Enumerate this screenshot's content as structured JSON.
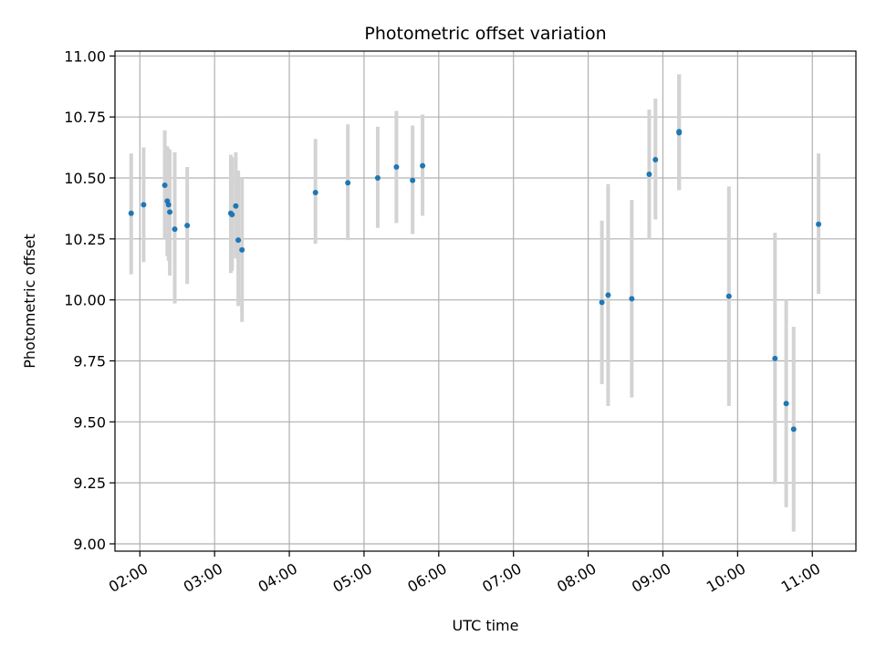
{
  "chart_data": {
    "type": "scatter",
    "title": "Photometric offset variation",
    "xlabel": "UTC time",
    "ylabel": "Photometric offset",
    "x_ticks": [
      "02:00",
      "03:00",
      "04:00",
      "05:00",
      "06:00",
      "07:00",
      "08:00",
      "09:00",
      "10:00",
      "11:00"
    ],
    "y_ticks": [
      "9.00",
      "9.25",
      "9.50",
      "9.75",
      "10.00",
      "10.25",
      "10.50",
      "10.75",
      "11.00"
    ],
    "xlim": [
      "01:40",
      "11:35"
    ],
    "ylim": [
      8.97,
      11.02
    ],
    "grid": true,
    "colors": {
      "point": "#1f77b4",
      "errorbar": "#d3d3d3",
      "grid": "#b0b0b0"
    },
    "points": [
      {
        "t": "01:53",
        "y": 10.355,
        "lo": 10.105,
        "hi": 10.6
      },
      {
        "t": "02:03",
        "y": 10.39,
        "lo": 10.155,
        "hi": 10.625
      },
      {
        "t": "02:20",
        "y": 10.47,
        "lo": 10.25,
        "hi": 10.695
      },
      {
        "t": "02:22",
        "y": 10.405,
        "lo": 10.18,
        "hi": 10.63
      },
      {
        "t": "02:23",
        "y": 10.39,
        "lo": 10.16,
        "hi": 10.62
      },
      {
        "t": "02:24",
        "y": 10.36,
        "lo": 10.1,
        "hi": 10.615
      },
      {
        "t": "02:28",
        "y": 10.29,
        "lo": 9.985,
        "hi": 10.605
      },
      {
        "t": "02:38",
        "y": 10.305,
        "lo": 10.065,
        "hi": 10.545
      },
      {
        "t": "03:13",
        "y": 10.355,
        "lo": 10.11,
        "hi": 10.595
      },
      {
        "t": "03:14",
        "y": 10.35,
        "lo": 10.12,
        "hi": 10.585
      },
      {
        "t": "03:17",
        "y": 10.385,
        "lo": 10.17,
        "hi": 10.605
      },
      {
        "t": "03:19",
        "y": 10.245,
        "lo": 9.975,
        "hi": 10.53
      },
      {
        "t": "03:22",
        "y": 10.205,
        "lo": 9.91,
        "hi": 10.5
      },
      {
        "t": "04:21",
        "y": 10.44,
        "lo": 10.23,
        "hi": 10.66
      },
      {
        "t": "04:47",
        "y": 10.48,
        "lo": 10.245,
        "hi": 10.72
      },
      {
        "t": "05:11",
        "y": 10.5,
        "lo": 10.295,
        "hi": 10.71
      },
      {
        "t": "05:26",
        "y": 10.545,
        "lo": 10.315,
        "hi": 10.775
      },
      {
        "t": "05:39",
        "y": 10.49,
        "lo": 10.27,
        "hi": 10.715
      },
      {
        "t": "05:47",
        "y": 10.55,
        "lo": 10.345,
        "hi": 10.76
      },
      {
        "t": "08:11",
        "y": 9.99,
        "lo": 9.655,
        "hi": 10.325
      },
      {
        "t": "08:16",
        "y": 10.02,
        "lo": 9.565,
        "hi": 10.475
      },
      {
        "t": "08:35",
        "y": 10.005,
        "lo": 9.6,
        "hi": 10.41
      },
      {
        "t": "08:49",
        "y": 10.515,
        "lo": 10.25,
        "hi": 10.78
      },
      {
        "t": "08:54",
        "y": 10.575,
        "lo": 10.33,
        "hi": 10.825
      },
      {
        "t": "09:13",
        "y": 10.685,
        "lo": 10.45,
        "hi": 10.925
      },
      {
        "t": "09:13",
        "y": 10.69,
        "lo": 10.45,
        "hi": 10.925
      },
      {
        "t": "09:53",
        "y": 10.015,
        "lo": 9.565,
        "hi": 10.465
      },
      {
        "t": "10:30",
        "y": 9.76,
        "lo": 9.245,
        "hi": 10.275
      },
      {
        "t": "10:39",
        "y": 9.575,
        "lo": 9.15,
        "hi": 10.0
      },
      {
        "t": "10:45",
        "y": 9.47,
        "lo": 9.05,
        "hi": 9.89
      },
      {
        "t": "11:05",
        "y": 10.31,
        "lo": 10.025,
        "hi": 10.6
      }
    ]
  }
}
